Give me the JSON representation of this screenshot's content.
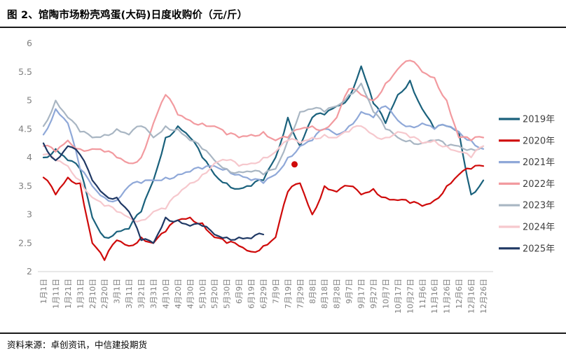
{
  "header": {
    "title": "图 2、馆陶市场粉壳鸡蛋(大码)日度收购价（元/斤）"
  },
  "footer": {
    "source": "资料来源：卓创资讯，中信建投期货"
  },
  "chart_data": {
    "type": "line",
    "title": "馆陶市场粉壳鸡蛋(大码)日度收购价",
    "unit": "元/斤",
    "ylim": [
      2,
      6
    ],
    "yticks": [
      "6",
      "5.5",
      "5",
      "4.5",
      "4",
      "3.5",
      "3",
      "2.5",
      "2"
    ],
    "grid": false,
    "legend_position": "right",
    "axis_color": "#d9d9d9",
    "tick_label_color": "#808080",
    "legend_label_color": "#404040",
    "categories": [
      "1月1日",
      "1月11日",
      "1月21日",
      "1月31日",
      "2月10日",
      "2月20日",
      "3月1日",
      "3月11日",
      "3月21日",
      "3月31日",
      "4月10日",
      "4月20日",
      "4月30日",
      "5月10日",
      "5月20日",
      "5月30日",
      "6月9日",
      "6月19日",
      "6月29日",
      "7月9日",
      "7月19日",
      "7月29日",
      "8月8日",
      "8月18日",
      "8月28日",
      "9月7日",
      "9月17日",
      "9月27日",
      "10月7日",
      "10月17日",
      "10月27日",
      "11月6日",
      "11月16日",
      "11月26日",
      "12月6日",
      "12月16日",
      "12月26日"
    ],
    "series": [
      {
        "name": "2019年",
        "color": "#1a617c",
        "values": [
          4.0,
          4.15,
          3.95,
          3.8,
          2.95,
          2.6,
          2.7,
          2.75,
          3.05,
          3.6,
          4.35,
          4.55,
          4.35,
          4.0,
          3.7,
          3.55,
          3.45,
          3.5,
          3.6,
          4.0,
          4.7,
          4.2,
          4.7,
          4.75,
          4.9,
          5.05,
          5.6,
          4.95,
          4.6,
          5.1,
          5.35,
          4.85,
          4.5,
          4.55,
          4.45,
          3.35,
          3.6
        ]
      },
      {
        "name": "2020年",
        "color": "#cf0a0a",
        "values": [
          3.65,
          3.35,
          3.65,
          3.55,
          2.5,
          2.2,
          2.55,
          2.45,
          2.6,
          2.5,
          2.7,
          2.9,
          2.95,
          2.85,
          2.6,
          2.5,
          2.45,
          2.35,
          2.45,
          2.6,
          3.4,
          3.55,
          3.0,
          3.5,
          3.4,
          3.5,
          3.35,
          3.45,
          3.3,
          3.25,
          3.2,
          3.15,
          3.25,
          3.5,
          3.7,
          3.8,
          3.85
        ]
      },
      {
        "name": "2021年",
        "color": "#8fa8d8",
        "values": [
          4.4,
          4.85,
          4.6,
          3.8,
          3.5,
          3.3,
          3.25,
          3.5,
          3.55,
          3.6,
          3.65,
          3.7,
          3.75,
          3.8,
          3.85,
          3.8,
          3.7,
          3.6,
          3.55,
          3.7,
          4.0,
          4.2,
          4.3,
          4.5,
          4.4,
          4.55,
          4.8,
          4.7,
          4.9,
          4.65,
          4.55,
          4.6,
          4.5,
          4.55,
          4.45,
          4.3,
          4.15
        ]
      },
      {
        "name": "2022年",
        "color": "#f29a9f",
        "values": [
          4.2,
          4.1,
          4.3,
          4.15,
          4.15,
          4.1,
          4.0,
          3.9,
          4.0,
          4.6,
          5.1,
          4.75,
          4.65,
          4.6,
          4.55,
          4.4,
          4.35,
          4.4,
          4.45,
          4.3,
          4.35,
          4.5,
          4.55,
          4.5,
          4.7,
          5.2,
          5.1,
          5.0,
          5.3,
          5.55,
          5.7,
          5.5,
          5.4,
          5.0,
          4.35,
          4.3,
          4.35
        ]
      },
      {
        "name": "2023年",
        "color": "#a9b6c3",
        "values": [
          4.55,
          5.0,
          4.7,
          4.45,
          4.35,
          4.4,
          4.5,
          4.4,
          4.55,
          4.35,
          4.55,
          4.5,
          4.3,
          4.15,
          3.95,
          3.8,
          3.75,
          3.75,
          3.7,
          3.8,
          4.3,
          4.8,
          4.85,
          4.8,
          4.9,
          5.1,
          5.3,
          4.8,
          4.5,
          4.35,
          4.3,
          4.25,
          4.3,
          4.2,
          4.2,
          4.15,
          4.2
        ]
      },
      {
        "name": "2024年",
        "color": "#f6c8cd",
        "values": [
          4.05,
          3.95,
          3.85,
          3.6,
          3.3,
          3.15,
          3.05,
          2.95,
          2.9,
          3.05,
          3.1,
          3.35,
          3.55,
          3.7,
          3.9,
          3.95,
          3.85,
          3.9,
          4.0,
          4.1,
          4.3,
          4.25,
          4.35,
          4.4,
          4.35,
          4.45,
          4.55,
          4.4,
          4.35,
          4.45,
          4.35,
          4.25,
          4.3,
          4.2,
          4.1,
          4.0,
          4.2
        ]
      },
      {
        "name": "2025年",
        "color": "#1f3864",
        "values": [
          4.25,
          3.95,
          4.2,
          4.05,
          3.6,
          3.35,
          3.3,
          3.05,
          2.55,
          2.5,
          2.95,
          2.9,
          2.8,
          2.8,
          2.65,
          2.6,
          2.6,
          2.58,
          2.65,
          null,
          null,
          null,
          null,
          null,
          null,
          null,
          null,
          null,
          null,
          null,
          null,
          null,
          null,
          null,
          null,
          null,
          null
        ]
      }
    ],
    "marker_dot": {
      "series": "2020年",
      "color": "#cf0a0a",
      "x_index": 20.55,
      "value": 3.88
    }
  }
}
